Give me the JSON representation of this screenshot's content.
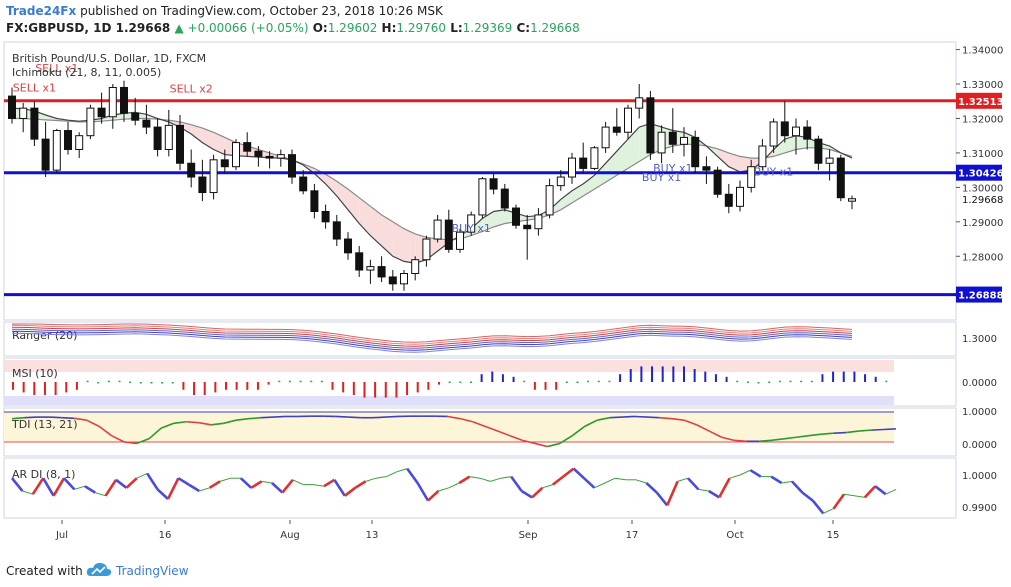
{
  "header": {
    "source_brand": "Trade24Fx",
    "published_text": "published on TradingView.com, October 23, 2018 10:26 MSK",
    "symbol": "FX:GBPUSD, 1D",
    "last": "1.29668",
    "change": "▲ +0.00066 (+0.05%)",
    "o_label": "O:",
    "o_val": "1.29602",
    "h_label": "H:",
    "h_val": "1.29760",
    "l_label": "L:",
    "l_val": "1.29369",
    "c_label": "C:",
    "c_val": "1.29668"
  },
  "footer": {
    "created_with": "Created with",
    "brand": "TradingView"
  },
  "chart_data": [
    {
      "type": "candlestick",
      "title": "British Pound/U.S. Dollar, 1D, FXCM",
      "indicator": "Ichimoku (21, 8, 11, 0.005)",
      "y_ticks": [
        "1.34000",
        "1.33000",
        "1.32000",
        "1.31000",
        "1.30000",
        "1.29000",
        "1.28000"
      ],
      "ylim": [
        1.2615,
        1.3422
      ],
      "x_ticks": [
        "Jul",
        "16",
        "Aug",
        "13",
        "Sep",
        "17",
        "Oct",
        "15"
      ],
      "last_price": "1.29668",
      "levels": [
        {
          "value": 1.32513,
          "label": "1.32513",
          "color": "#e02020"
        },
        {
          "value": 1.30426,
          "label": "1.30426",
          "color": "#1010d0"
        },
        {
          "value": 1.26888,
          "label": "1.26888",
          "color": "#1010d0"
        }
      ],
      "signals": [
        {
          "label": "SELL x1",
          "bar": 4,
          "price": 1.3335
        },
        {
          "label": "SELL x1",
          "bar": 2,
          "price": 1.3278
        },
        {
          "label": "SELL x2",
          "bar": 16,
          "price": 1.3275
        },
        {
          "label": "BUY x1",
          "bar": 41,
          "price": 1.287
        },
        {
          "label": "BUY x1",
          "bar": 59,
          "price": 1.3045
        },
        {
          "label": "BUY x1",
          "bar": 58,
          "price": 1.3018
        },
        {
          "label": "BUY x1",
          "bar": 68,
          "price": 1.3035
        }
      ],
      "ohlc": [
        [
          1.3265,
          1.329,
          1.3185,
          1.32
        ],
        [
          1.32,
          1.3245,
          1.316,
          1.323
        ],
        [
          1.323,
          1.325,
          1.312,
          1.314
        ],
        [
          1.314,
          1.319,
          1.303,
          1.305
        ],
        [
          1.305,
          1.317,
          1.304,
          1.3165
        ],
        [
          1.3165,
          1.319,
          1.3095,
          1.311
        ],
        [
          1.311,
          1.316,
          1.3085,
          1.315
        ],
        [
          1.315,
          1.324,
          1.314,
          1.323
        ],
        [
          1.323,
          1.3275,
          1.3185,
          1.3205
        ],
        [
          1.3205,
          1.33,
          1.317,
          1.329
        ],
        [
          1.329,
          1.331,
          1.319,
          1.3215
        ],
        [
          1.3215,
          1.326,
          1.318,
          1.3195
        ],
        [
          1.3195,
          1.324,
          1.3155,
          1.3175
        ],
        [
          1.3175,
          1.32,
          1.309,
          1.311
        ],
        [
          1.311,
          1.3225,
          1.309,
          1.318
        ],
        [
          1.318,
          1.321,
          1.305,
          1.307
        ],
        [
          1.307,
          1.311,
          1.3,
          1.303
        ],
        [
          1.303,
          1.308,
          1.296,
          1.2985
        ],
        [
          1.2985,
          1.3095,
          1.2965,
          1.308
        ],
        [
          1.308,
          1.311,
          1.304,
          1.306
        ],
        [
          1.306,
          1.314,
          1.305,
          1.313
        ],
        [
          1.313,
          1.316,
          1.309,
          1.3105
        ],
        [
          1.3105,
          1.312,
          1.306,
          1.309
        ],
        [
          1.309,
          1.3105,
          1.3055,
          1.3085
        ],
        [
          1.3085,
          1.311,
          1.306,
          1.3095
        ],
        [
          1.3095,
          1.311,
          1.301,
          1.303
        ],
        [
          1.303,
          1.305,
          1.298,
          1.299
        ],
        [
          1.299,
          1.301,
          1.291,
          1.293
        ],
        [
          1.293,
          1.295,
          1.288,
          1.29
        ],
        [
          1.29,
          1.292,
          1.283,
          1.285
        ],
        [
          1.285,
          1.287,
          1.279,
          1.281
        ],
        [
          1.281,
          1.283,
          1.274,
          1.276
        ],
        [
          1.276,
          1.279,
          1.272,
          1.277
        ],
        [
          1.277,
          1.28,
          1.2725,
          1.274
        ],
        [
          1.274,
          1.276,
          1.27,
          1.272
        ],
        [
          1.272,
          1.276,
          1.27,
          1.275
        ],
        [
          1.275,
          1.28,
          1.273,
          1.279
        ],
        [
          1.279,
          1.286,
          1.277,
          1.285
        ],
        [
          1.285,
          1.292,
          1.284,
          1.2905
        ],
        [
          1.2905,
          1.2935,
          1.281,
          1.282
        ],
        [
          1.282,
          1.288,
          1.281,
          1.287
        ],
        [
          1.287,
          1.293,
          1.286,
          1.292
        ],
        [
          1.292,
          1.303,
          1.291,
          1.3025
        ],
        [
          1.3025,
          1.304,
          1.298,
          1.2995
        ],
        [
          1.2995,
          1.301,
          1.293,
          1.294
        ],
        [
          1.294,
          1.295,
          1.288,
          1.289
        ],
        [
          1.289,
          1.292,
          1.279,
          1.288
        ],
        [
          1.288,
          1.294,
          1.286,
          1.292
        ],
        [
          1.292,
          1.3025,
          1.291,
          1.3005
        ],
        [
          1.3005,
          1.305,
          1.299,
          1.303
        ],
        [
          1.303,
          1.31,
          1.301,
          1.3085
        ],
        [
          1.3085,
          1.313,
          1.304,
          1.3055
        ],
        [
          1.3055,
          1.312,
          1.305,
          1.3115
        ],
        [
          1.3115,
          1.319,
          1.31,
          1.3175
        ],
        [
          1.3175,
          1.323,
          1.315,
          1.316
        ],
        [
          1.316,
          1.324,
          1.314,
          1.323
        ],
        [
          1.323,
          1.33,
          1.32,
          1.326
        ],
        [
          1.326,
          1.328,
          1.308,
          1.31
        ],
        [
          1.31,
          1.318,
          1.307,
          1.316
        ],
        [
          1.316,
          1.323,
          1.31,
          1.3125
        ],
        [
          1.3125,
          1.3175,
          1.309,
          1.3145
        ],
        [
          1.3145,
          1.3165,
          1.304,
          1.306
        ],
        [
          1.306,
          1.309,
          1.301,
          1.305
        ],
        [
          1.305,
          1.306,
          1.297,
          1.298
        ],
        [
          1.298,
          1.301,
          1.2925,
          1.2945
        ],
        [
          1.2945,
          1.302,
          1.293,
          1.3
        ],
        [
          1.3,
          1.308,
          1.2985,
          1.306
        ],
        [
          1.306,
          1.314,
          1.305,
          1.312
        ],
        [
          1.312,
          1.32,
          1.31,
          1.319
        ],
        [
          1.319,
          1.325,
          1.313,
          1.315
        ],
        [
          1.315,
          1.32,
          1.3095,
          1.3175
        ],
        [
          1.3175,
          1.3195,
          1.311,
          1.314
        ],
        [
          1.314,
          1.315,
          1.305,
          1.307
        ],
        [
          1.307,
          1.311,
          1.302,
          1.3085
        ],
        [
          1.3085,
          1.3095,
          1.296,
          1.297
        ],
        [
          1.296,
          1.2976,
          1.2937,
          1.2967
        ]
      ],
      "tenkan": [
        1.323,
        1.3228,
        1.3222,
        1.321,
        1.32,
        1.3195,
        1.3192,
        1.3195,
        1.32,
        1.321,
        1.3215,
        1.3218,
        1.3212,
        1.32,
        1.319,
        1.3175,
        1.3155,
        1.313,
        1.311,
        1.3095,
        1.3092,
        1.309,
        1.3088,
        1.3086,
        1.3085,
        1.308,
        1.3065,
        1.304,
        1.301,
        1.2975,
        1.2935,
        1.2895,
        1.286,
        1.283,
        1.28,
        1.2785,
        1.278,
        1.279,
        1.2815,
        1.284,
        1.286,
        1.288,
        1.291,
        1.293,
        1.2935,
        1.2925,
        1.2915,
        1.2918,
        1.2935,
        1.2965,
        1.299,
        1.301,
        1.3035,
        1.307,
        1.3105,
        1.314,
        1.3175,
        1.3185,
        1.3175,
        1.3165,
        1.316,
        1.3145,
        1.312,
        1.309,
        1.306,
        1.3045,
        1.305,
        1.3075,
        1.311,
        1.314,
        1.315,
        1.3145,
        1.313,
        1.312,
        1.31,
        1.3085
      ],
      "kijun": [
        1.32,
        1.32,
        1.3198,
        1.3196,
        1.3194,
        1.3192,
        1.319,
        1.319,
        1.3192,
        1.3195,
        1.3198,
        1.32,
        1.32,
        1.3198,
        1.3195,
        1.319,
        1.3182,
        1.3172,
        1.316,
        1.3145,
        1.313,
        1.312,
        1.311,
        1.31,
        1.309,
        1.308,
        1.3068,
        1.3055,
        1.3038,
        1.3018,
        1.2995,
        1.297,
        1.2945,
        1.292,
        1.29,
        1.288,
        1.2865,
        1.2855,
        1.285,
        1.2848,
        1.285,
        1.286,
        1.2872,
        1.2885,
        1.2895,
        1.29,
        1.2905,
        1.291,
        1.292,
        1.2935,
        1.2955,
        1.2975,
        1.2995,
        1.3015,
        1.3035,
        1.3055,
        1.3075,
        1.3095,
        1.311,
        1.312,
        1.3125,
        1.3125,
        1.312,
        1.3112,
        1.31,
        1.309,
        1.3085,
        1.3085,
        1.309,
        1.31,
        1.311,
        1.3115,
        1.3115,
        1.311,
        1.31,
        1.309
      ]
    },
    {
      "type": "line",
      "title": "Ranger (20)",
      "y_ticks": [
        "1.3000"
      ],
      "series_count": 6
    },
    {
      "type": "bar",
      "title": "MSI (10)",
      "y_ticks": [
        "0.0000"
      ],
      "values": [
        -0.3,
        -0.4,
        -0.5,
        -0.5,
        -0.5,
        -0.4,
        -0.3,
        0.05,
        -0.02,
        0.05,
        0.05,
        0.02,
        -0.05,
        -0.05,
        -0.05,
        -0.05,
        -0.3,
        -0.5,
        -0.5,
        -0.4,
        -0.3,
        -0.3,
        -0.3,
        -0.3,
        -0.1,
        0.05,
        0.05,
        0.05,
        0.05,
        0.05,
        -0.3,
        -0.4,
        -0.5,
        -0.6,
        -0.6,
        -0.6,
        -0.6,
        -0.5,
        -0.4,
        -0.3,
        -0.1,
        0.02,
        0.02,
        0.02,
        0.3,
        0.4,
        0.3,
        0.2,
        0.05,
        -0.3,
        -0.3,
        -0.3,
        0.02,
        0.02,
        0.05,
        0.05,
        0.05,
        0.3,
        0.5,
        0.6,
        0.6,
        0.6,
        0.6,
        0.6,
        0.5,
        0.4,
        0.3,
        0.2,
        0.05,
        0.02,
        -0.02,
        0.02,
        0.05,
        0.05,
        0.05,
        0.05,
        0.3,
        0.4,
        0.4,
        0.4,
        0.3,
        0.2,
        0.05
      ],
      "colors": {
        "pos": "#2222cc",
        "neg": "#e02020",
        "small": "#26a65b"
      }
    },
    {
      "type": "line",
      "title": "TDI (13, 21)",
      "y_ticks": [
        "1.0000",
        "0.0000"
      ],
      "values": [
        0.85,
        0.88,
        0.9,
        0.9,
        0.88,
        0.86,
        0.8,
        0.6,
        0.3,
        0.1,
        0.05,
        0.2,
        0.55,
        0.7,
        0.75,
        0.72,
        0.65,
        0.7,
        0.8,
        0.85,
        0.88,
        0.9,
        0.92,
        0.92,
        0.93,
        0.93,
        0.92,
        0.9,
        0.88,
        0.88,
        0.9,
        0.92,
        0.93,
        0.93,
        0.93,
        0.92,
        0.85,
        0.75,
        0.6,
        0.45,
        0.3,
        0.15,
        0.05,
        -0.05,
        0.05,
        0.3,
        0.6,
        0.8,
        0.88,
        0.9,
        0.92,
        0.9,
        0.88,
        0.85,
        0.8,
        0.65,
        0.45,
        0.25,
        0.15,
        0.12,
        0.12,
        0.15,
        0.2,
        0.25,
        0.3,
        0.35,
        0.38,
        0.4,
        0.45,
        0.48,
        0.5,
        0.52
      ]
    },
    {
      "type": "line",
      "title": "AR DI (8, 1)",
      "y_ticks": [
        "1.0000",
        "0.9900"
      ],
      "values": [
        0.999,
        0.995,
        0.994,
        0.999,
        0.9935,
        0.999,
        0.9955,
        0.9965,
        0.9945,
        0.9935,
        0.9985,
        0.996,
        0.999,
        1.0005,
        0.9955,
        0.9925,
        0.999,
        0.997,
        0.995,
        0.996,
        0.998,
        0.999,
        0.999,
        0.996,
        0.998,
        0.9975,
        0.9945,
        0.9985,
        0.997,
        0.997,
        0.9965,
        0.9985,
        0.9935,
        0.996,
        0.998,
        0.999,
        0.9995,
        1.001,
        1.002,
        0.9975,
        0.992,
        0.995,
        0.996,
        0.9975,
        0.9995,
        0.999,
        0.998,
        0.999,
        0.9995,
        0.995,
        0.993,
        0.996,
        0.997,
        0.9995,
        1.002,
        0.999,
        0.996,
        0.9975,
        0.999,
        0.9985,
        0.9985,
        0.9975,
        0.9945,
        0.9905,
        0.998,
        0.999,
        0.9955,
        0.995,
        0.993,
        0.999,
        1.0,
        1.0015,
        0.9995,
        0.9995,
        0.9975,
        0.998,
        0.9945,
        0.992,
        0.988,
        0.9895,
        0.994,
        0.9935,
        0.993,
        0.9965,
        0.994,
        0.9955
      ]
    }
  ]
}
